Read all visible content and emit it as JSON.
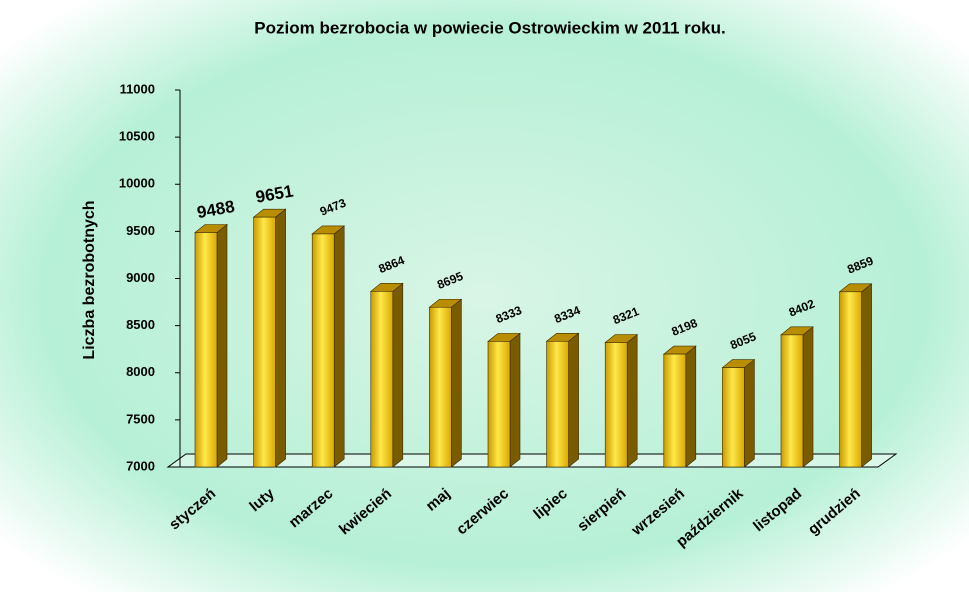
{
  "chart_data": {
    "type": "bar3d",
    "title": "Poziom bezrobocia w powiecie Ostrowieckim w 2011 roku.",
    "y_label": "Liczba bezrobotnych",
    "categories": [
      "styczeń",
      "luty",
      "marzec",
      "kwiecień",
      "maj",
      "czerwiec",
      "lipiec",
      "sierpień",
      "wrzesień",
      "październik",
      "listopad",
      "grudzień"
    ],
    "values": [
      9488,
      9651,
      9473,
      8864,
      8695,
      8333,
      8334,
      8321,
      8198,
      8055,
      8402,
      8859
    ],
    "color": "#e6b400",
    "ylim": [
      7000,
      11000
    ],
    "yticks": [
      7000,
      7500,
      8000,
      8500,
      9000,
      9500,
      10000,
      10500,
      11000
    ]
  }
}
